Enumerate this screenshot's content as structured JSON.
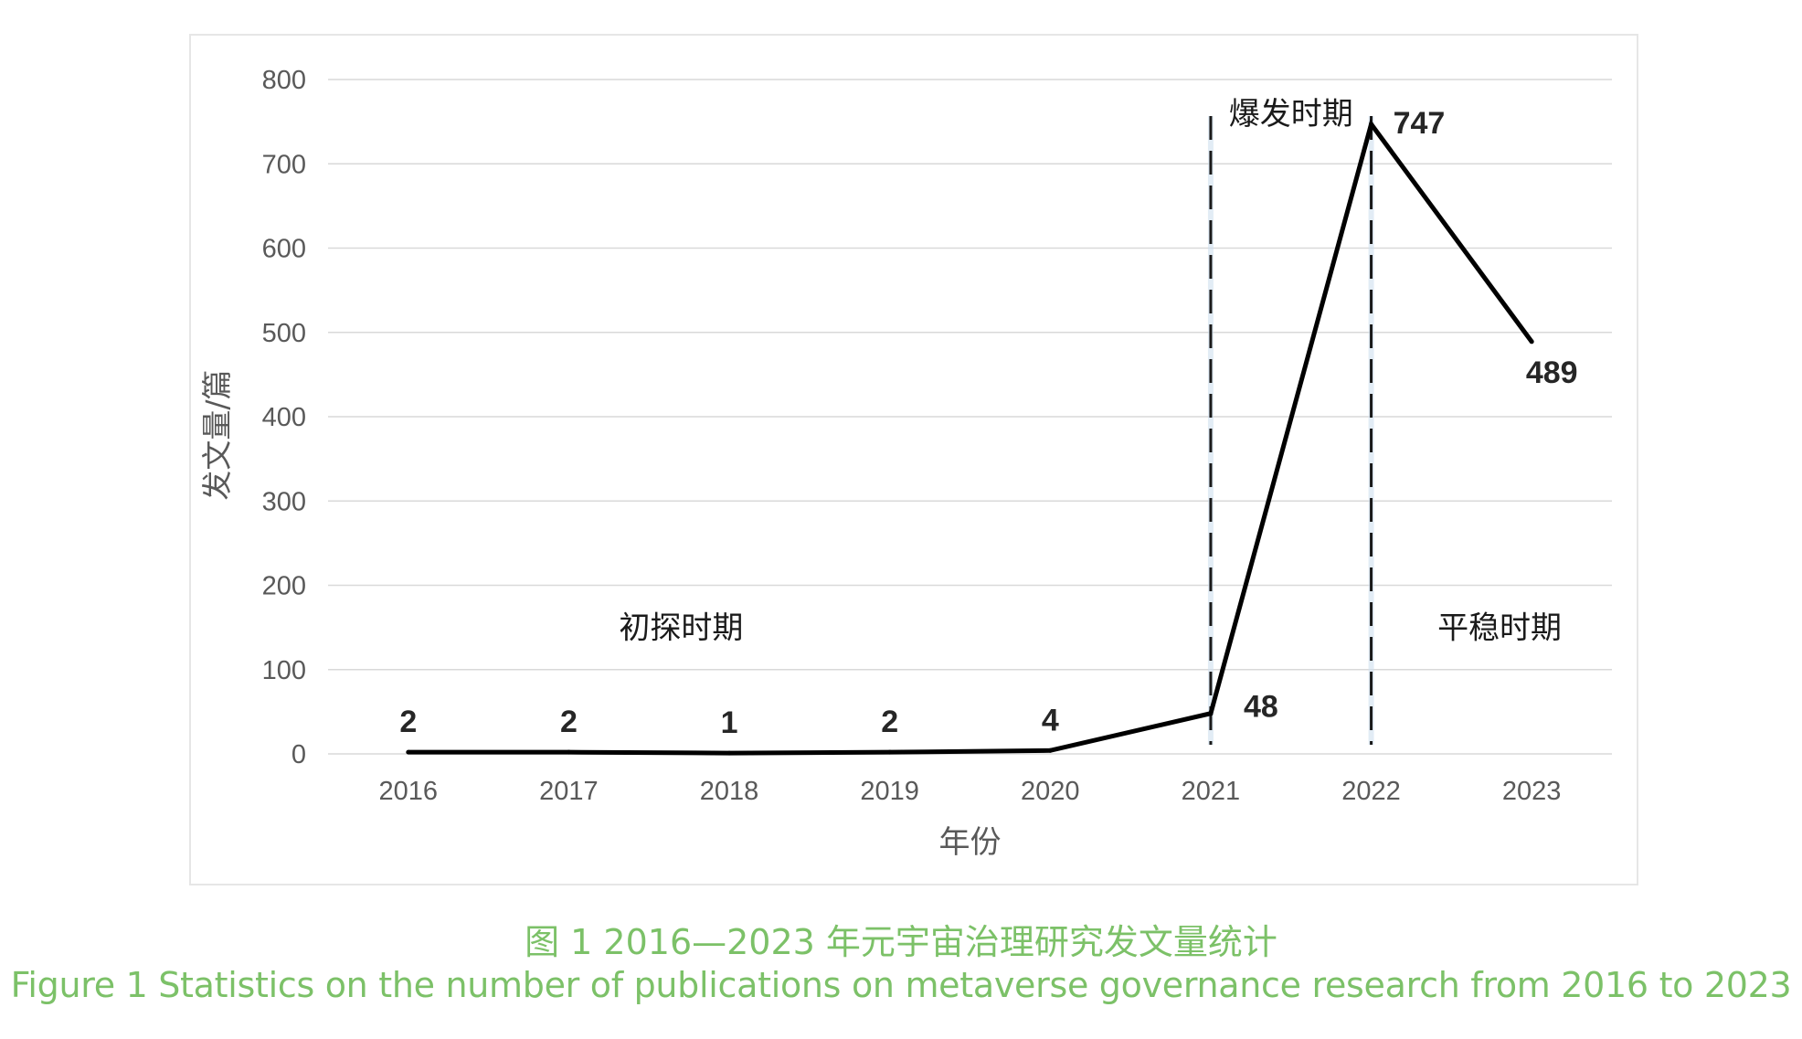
{
  "chart_data": {
    "type": "line",
    "categories": [
      "2016",
      "2017",
      "2018",
      "2019",
      "2020",
      "2021",
      "2022",
      "2023"
    ],
    "series": [
      {
        "values": [
          2,
          2,
          1,
          2,
          4,
          48,
          747,
          489
        ]
      }
    ],
    "data_labels": [
      "2",
      "2",
      "1",
      "2",
      "4",
      "48",
      "747",
      "489"
    ],
    "xlabel": "年份",
    "ylabel": "发文量/篇",
    "ylim": [
      0,
      800
    ],
    "yticks": [
      0,
      100,
      200,
      300,
      400,
      500,
      600,
      700,
      800
    ],
    "grid": "horizontal",
    "phase_dividers": [
      "2021",
      "2022"
    ],
    "annotations": [
      {
        "text": "初探时期",
        "x": "2017.7",
        "y": 150
      },
      {
        "text": "爆发时期",
        "x": "2021.5",
        "y": 760
      },
      {
        "text": "平稳时期",
        "x": "2022.8",
        "y": 150
      }
    ],
    "colors": {
      "line": "#000000",
      "grid": "#d9d9d9",
      "divider": "#1a1a1a",
      "tick_text": "#595959",
      "label_text": "#262626"
    }
  },
  "caption": {
    "cn": "图 1  2016—2023 年元宇宙治理研究发文量统计",
    "en": "Figure 1  Statistics on the number of publications on metaverse governance research from 2016 to 2023",
    "color": "#7cc168"
  }
}
